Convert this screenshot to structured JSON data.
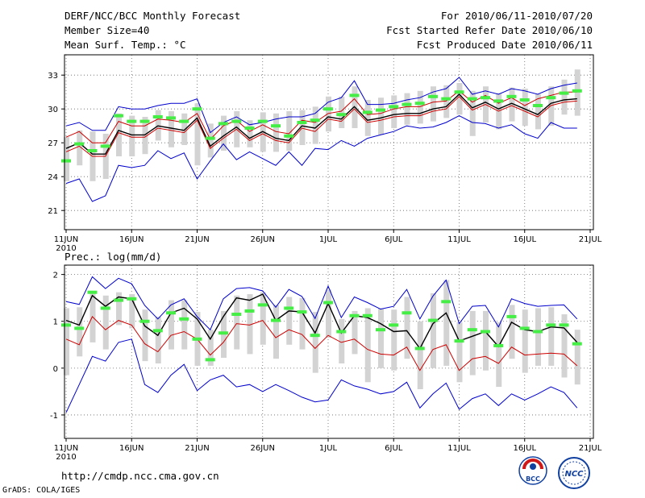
{
  "header": {
    "title": "DERF/NCC/BCC Monthly Forecast",
    "member_size": "Member Size=40",
    "variable": "Mean Surf. Temp.: °C",
    "period": "For 2010/06/11-2010/07/20",
    "started": "Fcst Started Refer Date 2010/06/10",
    "produced": "Fcst Produced Date 2010/06/11"
  },
  "footer": {
    "url": "http://cmdp.ncc.cma.gov.cn",
    "grads": "GrADS: COLA/IGES",
    "logo_bcc": "BCC",
    "logo_ncc": "NCC"
  },
  "colors": {
    "max_min": "#0000cc",
    "mean": "#000000",
    "alt": "#cc0000",
    "bar": "#d3d3d3",
    "green": "#44ee44"
  },
  "chart_data": [
    {
      "type": "box-line",
      "title": "",
      "ylabel": "Mean Surf. Temp.: °C",
      "ylim": [
        19.3,
        34.8
      ],
      "yticks": [
        21,
        24,
        27,
        30,
        33
      ],
      "ytick_labels": [
        "21",
        "24",
        "27",
        "30",
        "33"
      ],
      "xticks": [
        {
          "day": 1,
          "label": "11JUN"
        },
        {
          "day": 6,
          "label": "16JUN"
        },
        {
          "day": 11,
          "label": "21JUN"
        },
        {
          "day": 16,
          "label": "26JUN"
        },
        {
          "day": 21,
          "label": "1JUL"
        },
        {
          "day": 26,
          "label": "6JUL"
        },
        {
          "day": 31,
          "label": "11JUL"
        },
        {
          "day": 36,
          "label": "16JUL"
        },
        {
          "day": 41,
          "label": "21JUL"
        }
      ],
      "year_label": "2010",
      "days": [
        1,
        2,
        3,
        4,
        5,
        6,
        7,
        8,
        9,
        10,
        11,
        12,
        13,
        14,
        15,
        16,
        17,
        18,
        19,
        20,
        21,
        22,
        23,
        24,
        25,
        26,
        27,
        28,
        29,
        30,
        31,
        32,
        33,
        34,
        35,
        36,
        37,
        38,
        39,
        40
      ],
      "series": [
        {
          "name": "max",
          "values": [
            28.5,
            28.8,
            28.1,
            28.1,
            30.2,
            30.0,
            30.0,
            30.3,
            30.5,
            30.5,
            30.9,
            27.9,
            28.8,
            29.3,
            28.6,
            28.8,
            29.1,
            29.3,
            29.3,
            29.6,
            30.6,
            31.0,
            32.5,
            30.4,
            30.4,
            30.5,
            30.8,
            31.0,
            31.5,
            31.8,
            32.8,
            31.3,
            31.6,
            31.3,
            31.8,
            31.6,
            31.3,
            31.8,
            32.1,
            32.3
          ]
        },
        {
          "name": "upper",
          "values": [
            27.5,
            28.0,
            27.0,
            27.0,
            28.9,
            28.5,
            28.5,
            29.1,
            29.0,
            28.8,
            29.6,
            27.3,
            28.5,
            29.0,
            28.0,
            28.6,
            28.0,
            27.8,
            29.0,
            28.8,
            29.6,
            29.8,
            30.9,
            29.5,
            29.6,
            30.0,
            30.2,
            30.2,
            30.6,
            30.7,
            31.6,
            30.6,
            31.2,
            30.5,
            31.0,
            30.3,
            30.9,
            31.2,
            31.5,
            31.5
          ]
        },
        {
          "name": "mean",
          "values": [
            26.5,
            27.0,
            26.0,
            26.0,
            28.1,
            27.7,
            27.7,
            28.5,
            28.3,
            28.1,
            29.2,
            26.7,
            27.6,
            28.4,
            27.4,
            28.0,
            27.4,
            27.2,
            28.5,
            28.3,
            29.3,
            29.1,
            30.2,
            29.0,
            29.2,
            29.5,
            29.6,
            29.6,
            30.0,
            30.2,
            31.3,
            30.1,
            30.6,
            30.0,
            30.5,
            30.0,
            29.5,
            30.5,
            30.8,
            30.9
          ]
        },
        {
          "name": "lower",
          "values": [
            26.2,
            26.7,
            25.8,
            25.8,
            27.9,
            27.5,
            27.5,
            28.3,
            28.1,
            27.9,
            29.0,
            26.5,
            27.4,
            28.2,
            27.2,
            27.8,
            27.2,
            27.0,
            28.3,
            28.0,
            29.1,
            28.9,
            30.0,
            28.8,
            29.0,
            29.3,
            29.4,
            29.4,
            29.8,
            30.0,
            31.1,
            29.9,
            30.4,
            29.8,
            30.3,
            29.8,
            29.3,
            30.3,
            30.6,
            30.7
          ]
        },
        {
          "name": "min",
          "values": [
            23.4,
            23.8,
            21.8,
            22.3,
            25.0,
            24.8,
            25.0,
            26.3,
            25.6,
            26.1,
            23.8,
            25.4,
            26.9,
            25.5,
            26.2,
            25.6,
            25.0,
            26.2,
            25.0,
            26.5,
            26.4,
            27.2,
            26.7,
            27.4,
            27.7,
            28.0,
            28.5,
            28.3,
            28.4,
            28.8,
            29.4,
            28.8,
            28.7,
            28.3,
            28.6,
            27.8,
            27.4,
            28.8,
            28.3,
            28.3
          ]
        },
        {
          "name": "observed",
          "values": [
            25.4,
            26.9,
            26.3,
            26.7,
            29.4,
            28.9,
            28.9,
            29.3,
            29.2,
            28.9,
            30.0,
            27.4,
            28.7,
            28.9,
            28.3,
            28.9,
            28.5,
            27.6,
            28.8,
            29.0,
            30.0,
            29.5,
            31.2,
            29.7,
            29.9,
            30.2,
            30.4,
            30.5,
            31.1,
            30.9,
            31.5,
            30.9,
            31.0,
            30.7,
            31.1,
            30.8,
            30.3,
            31.0,
            31.4,
            31.6
          ]
        },
        {
          "name": "box_top",
          "values": [
            27.5,
            28.1,
            28.0,
            27.8,
            29.6,
            29.4,
            29.3,
            29.9,
            29.8,
            29.6,
            30.5,
            28.7,
            29.4,
            29.8,
            29.0,
            29.7,
            29.6,
            29.8,
            29.9,
            30.2,
            31.1,
            31.1,
            32.0,
            30.8,
            31.0,
            31.2,
            31.4,
            31.6,
            32.0,
            32.1,
            32.3,
            31.6,
            32.0,
            31.4,
            31.9,
            31.8,
            31.3,
            32.0,
            32.6,
            33.5
          ]
        },
        {
          "name": "box_bottom",
          "values": [
            23.6,
            25.0,
            23.6,
            23.8,
            25.8,
            25.8,
            26.0,
            27.2,
            26.6,
            26.8,
            25.0,
            25.7,
            26.3,
            26.6,
            26.6,
            26.2,
            26.2,
            26.3,
            26.8,
            26.9,
            28.0,
            28.3,
            28.3,
            27.6,
            27.7,
            28.3,
            28.6,
            28.7,
            28.9,
            29.2,
            29.5,
            27.6,
            28.8,
            28.2,
            28.9,
            28.5,
            28.2,
            28.5,
            29.5,
            29.4
          ]
        }
      ]
    },
    {
      "type": "box-line",
      "title": "",
      "ylabel": "Prec.: log(mm/d)",
      "ylim": [
        -1.5,
        2.2
      ],
      "yticks": [
        -1,
        0,
        1,
        2
      ],
      "ytick_labels": [
        "-1",
        "0",
        "1",
        "2"
      ],
      "xticks": [
        {
          "day": 1,
          "label": "11JUN"
        },
        {
          "day": 6,
          "label": "16JUN"
        },
        {
          "day": 11,
          "label": "21JUN"
        },
        {
          "day": 16,
          "label": "26JUN"
        },
        {
          "day": 21,
          "label": "1JUL"
        },
        {
          "day": 26,
          "label": "6JUL"
        },
        {
          "day": 31,
          "label": "11JUL"
        },
        {
          "day": 36,
          "label": "16JUL"
        },
        {
          "day": 41,
          "label": "21JUL"
        }
      ],
      "year_label": "2010",
      "days": [
        1,
        2,
        3,
        4,
        5,
        6,
        7,
        8,
        9,
        10,
        11,
        12,
        13,
        14,
        15,
        16,
        17,
        18,
        19,
        20,
        21,
        22,
        23,
        24,
        25,
        26,
        27,
        28,
        29,
        30,
        31,
        32,
        33,
        34,
        35,
        36,
        37,
        38,
        39,
        40
      ],
      "series": [
        {
          "name": "max",
          "values": [
            1.42,
            1.36,
            1.95,
            1.7,
            1.92,
            1.8,
            1.34,
            1.05,
            1.35,
            1.48,
            1.1,
            0.82,
            1.48,
            1.7,
            1.72,
            1.65,
            1.3,
            1.68,
            1.53,
            1.06,
            1.75,
            1.08,
            1.52,
            1.4,
            1.26,
            1.32,
            1.68,
            1.05,
            1.54,
            1.88,
            0.95,
            1.32,
            1.34,
            0.88,
            1.48,
            1.38,
            1.32,
            1.34,
            1.35,
            1.05
          ]
        },
        {
          "name": "mean",
          "values": [
            1.02,
            0.92,
            1.55,
            1.32,
            1.52,
            1.48,
            0.9,
            0.7,
            1.18,
            1.28,
            1.05,
            0.62,
            1.1,
            1.5,
            1.45,
            1.58,
            1.02,
            1.22,
            1.2,
            0.75,
            1.38,
            0.75,
            1.12,
            1.08,
            0.95,
            0.78,
            0.8,
            0.42,
            0.95,
            1.18,
            0.58,
            0.68,
            0.78,
            0.46,
            0.98,
            0.82,
            0.78,
            0.88,
            0.86,
            0.55
          ]
        },
        {
          "name": "alt",
          "values": [
            0.62,
            0.5,
            1.1,
            0.82,
            1.02,
            0.92,
            0.52,
            0.35,
            0.7,
            0.78,
            0.62,
            0.28,
            0.55,
            0.95,
            0.92,
            1.02,
            0.65,
            0.82,
            0.72,
            0.42,
            0.7,
            0.55,
            0.62,
            0.4,
            0.3,
            0.28,
            0.45,
            -0.05,
            0.4,
            0.5,
            -0.05,
            0.2,
            0.25,
            0.1,
            0.45,
            0.28,
            0.3,
            0.32,
            0.3,
            0.05
          ]
        },
        {
          "name": "min",
          "values": [
            -0.95,
            -0.35,
            0.25,
            0.15,
            0.55,
            0.62,
            -0.35,
            -0.52,
            -0.15,
            0.08,
            -0.48,
            -0.25,
            -0.15,
            -0.4,
            -0.35,
            -0.5,
            -0.35,
            -0.48,
            -0.62,
            -0.72,
            -0.68,
            -0.25,
            -0.38,
            -0.45,
            -0.55,
            -0.5,
            -0.3,
            -0.85,
            -0.55,
            -0.32,
            -0.88,
            -0.65,
            -0.55,
            -0.8,
            -0.55,
            -0.68,
            -0.55,
            -0.4,
            -0.52,
            -0.85
          ]
        },
        {
          "name": "observed",
          "values": [
            0.92,
            0.85,
            1.62,
            1.28,
            1.45,
            1.48,
            1.0,
            0.8,
            1.18,
            1.05,
            0.62,
            0.18,
            0.75,
            1.15,
            1.22,
            1.35,
            1.02,
            1.28,
            1.2,
            0.7,
            1.4,
            0.78,
            1.12,
            1.12,
            0.82,
            0.92,
            1.18,
            0.42,
            1.02,
            1.42,
            0.58,
            0.82,
            0.78,
            0.48,
            1.1,
            0.85,
            0.78,
            0.92,
            0.92,
            0.52
          ]
        },
        {
          "name": "box_top",
          "values": [
            1.28,
            1.3,
            1.6,
            1.55,
            1.62,
            1.58,
            1.25,
            1.1,
            1.45,
            1.45,
            1.2,
            0.82,
            1.22,
            1.55,
            1.58,
            1.62,
            1.35,
            1.52,
            1.5,
            1.2,
            1.68,
            1.05,
            1.22,
            1.28,
            1.28,
            1.25,
            1.52,
            1.0,
            1.6,
            1.88,
            0.98,
            1.22,
            1.22,
            0.98,
            1.35,
            1.25,
            1.28,
            1.3,
            1.15,
            0.82
          ]
        },
        {
          "name": "box_bottom",
          "values": [
            -0.15,
            0.25,
            0.55,
            0.4,
            0.92,
            0.85,
            0.15,
            0.1,
            0.4,
            0.4,
            0.05,
            0.05,
            0.22,
            0.4,
            0.3,
            0.5,
            0.2,
            0.5,
            0.4,
            -0.1,
            0.65,
            0.1,
            0.3,
            -0.3,
            0.0,
            -0.05,
            0.2,
            -0.45,
            0.0,
            0.05,
            -0.3,
            -0.15,
            -0.05,
            -0.4,
            0.2,
            -0.1,
            0.05,
            0.05,
            -0.2,
            -0.35
          ]
        }
      ]
    }
  ]
}
